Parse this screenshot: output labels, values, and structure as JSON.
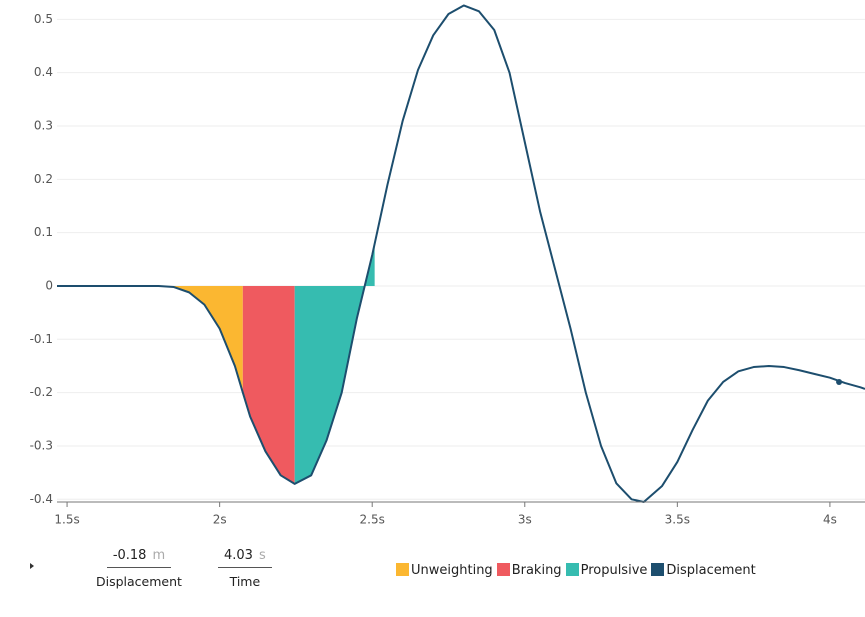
{
  "chart_data": {
    "type": "line",
    "x": [
      1.467,
      1.6,
      1.7,
      1.8,
      1.85,
      1.9,
      1.95,
      2.0,
      2.05,
      2.076,
      2.1,
      2.15,
      2.2,
      2.246,
      2.3,
      2.35,
      2.4,
      2.45,
      2.5,
      2.55,
      2.6,
      2.65,
      2.7,
      2.75,
      2.8,
      2.85,
      2.9,
      2.95,
      3.0,
      3.05,
      3.1,
      3.15,
      3.2,
      3.25,
      3.3,
      3.35,
      3.39,
      3.45,
      3.5,
      3.55,
      3.6,
      3.65,
      3.7,
      3.75,
      3.8,
      3.85,
      3.9,
      3.95,
      4.0,
      4.03,
      4.05,
      4.1,
      4.115
    ],
    "series": [
      {
        "name": "Displacement",
        "color": "#1d4e6e",
        "values": [
          0,
          0,
          0,
          0,
          -0.002,
          -0.012,
          -0.035,
          -0.08,
          -0.15,
          -0.2,
          -0.245,
          -0.31,
          -0.355,
          -0.371,
          -0.355,
          -0.29,
          -0.2,
          -0.06,
          0.058,
          0.19,
          0.31,
          0.405,
          0.47,
          0.51,
          0.526,
          0.515,
          0.48,
          0.4,
          0.27,
          0.14,
          0.03,
          -0.08,
          -0.2,
          -0.3,
          -0.37,
          -0.4,
          -0.405,
          -0.375,
          -0.33,
          -0.27,
          -0.215,
          -0.18,
          -0.16,
          -0.152,
          -0.15,
          -0.152,
          -0.158,
          -0.165,
          -0.172,
          -0.178,
          -0.182,
          -0.19,
          -0.193
        ]
      }
    ],
    "phases": [
      {
        "name": "Unweighting",
        "color": "#fbb731",
        "start": 1.8,
        "end": 2.076
      },
      {
        "name": "Braking",
        "color": "#ef5a5f",
        "start": 2.076,
        "end": 2.246
      },
      {
        "name": "Propulsive",
        "color": "#36bcb0",
        "start": 2.246,
        "end": 2.508
      }
    ],
    "xlim": [
      1.467,
      4.115
    ],
    "ylim": [
      -0.4,
      0.54
    ],
    "xticks": [
      {
        "value": 1.5,
        "label": "1.5s"
      },
      {
        "value": 2,
        "label": "2s"
      },
      {
        "value": 2.5,
        "label": "2.5s"
      },
      {
        "value": 3,
        "label": "3s"
      },
      {
        "value": 3.5,
        "label": "3.5s"
      },
      {
        "value": 4,
        "label": "4s"
      }
    ],
    "yticks": [
      0.5,
      0.4,
      0.3,
      0.2,
      0.1,
      0,
      -0.1,
      -0.2,
      -0.3,
      -0.4
    ],
    "grid": true
  },
  "readout": [
    {
      "value": -0.18,
      "unit": "m",
      "label": "Displacement"
    },
    {
      "value": 4.03,
      "unit": "s",
      "label": "Time"
    }
  ]
}
